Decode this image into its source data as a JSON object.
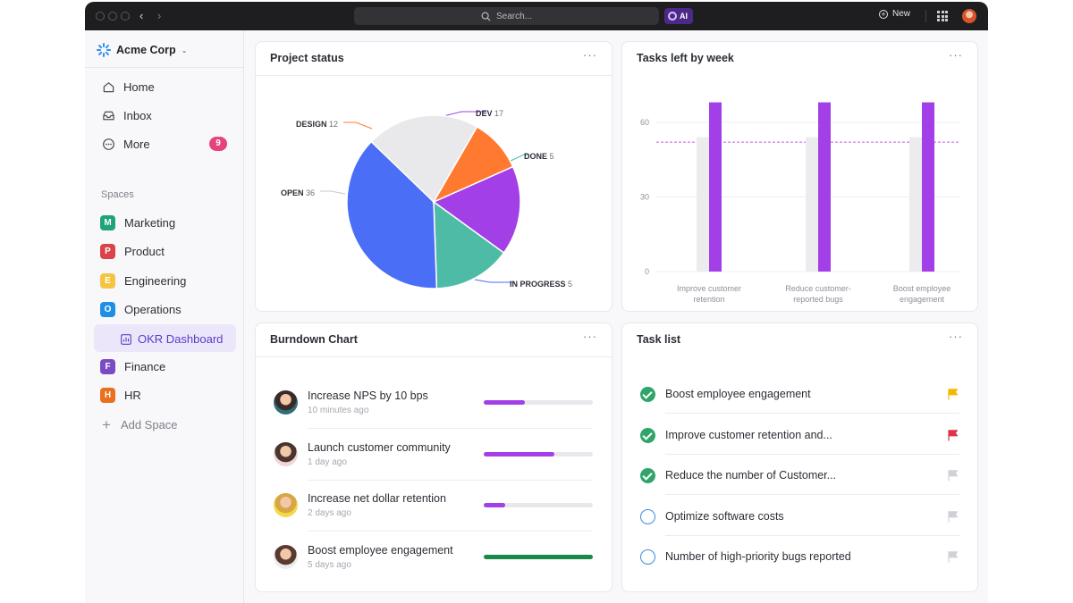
{
  "topbar": {
    "search_placeholder": "Search...",
    "ai_label": "AI",
    "new_label": "New"
  },
  "sidebar": {
    "workspace": "Acme Corp",
    "nav": [
      {
        "label": "Home",
        "icon": "home-icon"
      },
      {
        "label": "Inbox",
        "icon": "inbox-icon",
        "badge": "9"
      },
      {
        "label": "More",
        "icon": "more-icon"
      }
    ],
    "spaces_label": "Spaces",
    "spaces": [
      {
        "letter": "M",
        "label": "Marketing",
        "color": "#1fa37a"
      },
      {
        "letter": "P",
        "label": "Product",
        "color": "#d9434b"
      },
      {
        "letter": "E",
        "label": "Engineering",
        "color": "#f5c542"
      },
      {
        "letter": "O",
        "label": "Operations",
        "color": "#1e8fe6"
      },
      {
        "letter": "F",
        "label": "Finance",
        "color": "#7a4bc2"
      },
      {
        "letter": "H",
        "label": "HR",
        "color": "#e8701f"
      }
    ],
    "active_item": "OKR Dashboard",
    "add_space": "Add Space"
  },
  "project_status": {
    "title": "Project status",
    "menu": "···",
    "chart_data": {
      "type": "pie",
      "slices": [
        {
          "label": "DEV",
          "value": 17,
          "color": "#a33fe6"
        },
        {
          "label": "DONE",
          "value": 5,
          "color": "#4dbba6"
        },
        {
          "label": "IN PROGRESS",
          "value": 5,
          "color": "#4a6ef5"
        },
        {
          "label": "OPEN",
          "value": 36,
          "color": "#e9e9ec"
        },
        {
          "label": "DESIGN",
          "value": 12,
          "color": "#ff7a30"
        }
      ]
    }
  },
  "tasks_left": {
    "title": "Tasks left by week",
    "menu": "···",
    "chart_data": {
      "type": "bar",
      "categories": [
        [
          "Improve customer",
          "retention"
        ],
        [
          "Reduce customer-",
          "reported bugs"
        ],
        [
          "Boost employee",
          "engagement"
        ]
      ],
      "series": [
        {
          "values": [
            54,
            54,
            54
          ],
          "color": "#ececef"
        },
        {
          "values": [
            68,
            68,
            68
          ],
          "color": "#a33fe6"
        }
      ],
      "reference_line": 52,
      "ylim": [
        0,
        70
      ],
      "yticks": [
        0,
        30,
        60
      ]
    }
  },
  "burndown": {
    "title": "Burndown Chart",
    "menu": "···",
    "rows": [
      {
        "name": "Increase NPS by 10 bps",
        "time": "10 minutes ago",
        "progress": 0.38,
        "color": "#a33fe6"
      },
      {
        "name": "Launch customer community",
        "time": "1 day ago",
        "progress": 0.65,
        "color": "#a33fe6"
      },
      {
        "name": "Increase net dollar retention",
        "time": "2 days ago",
        "progress": 0.2,
        "color": "#a33fe6"
      },
      {
        "name": "Boost employee engagement",
        "time": "5 days ago",
        "progress": 1.0,
        "color": "#1a8a4a"
      }
    ]
  },
  "task_list": {
    "title": "Task list",
    "menu": "···",
    "tasks": [
      {
        "name": "Boost employee engagement",
        "done": true,
        "flag": "#f5b800"
      },
      {
        "name": "Improve customer retention and...",
        "done": true,
        "flag": "#e0334a"
      },
      {
        "name": "Reduce the number of Customer...",
        "done": true,
        "flag": "#cfd1d6"
      },
      {
        "name": "Optimize software costs",
        "done": false,
        "flag": "#cfd1d6"
      },
      {
        "name": "Number of high-priority bugs reported",
        "done": false,
        "flag": "#cfd1d6"
      }
    ]
  }
}
